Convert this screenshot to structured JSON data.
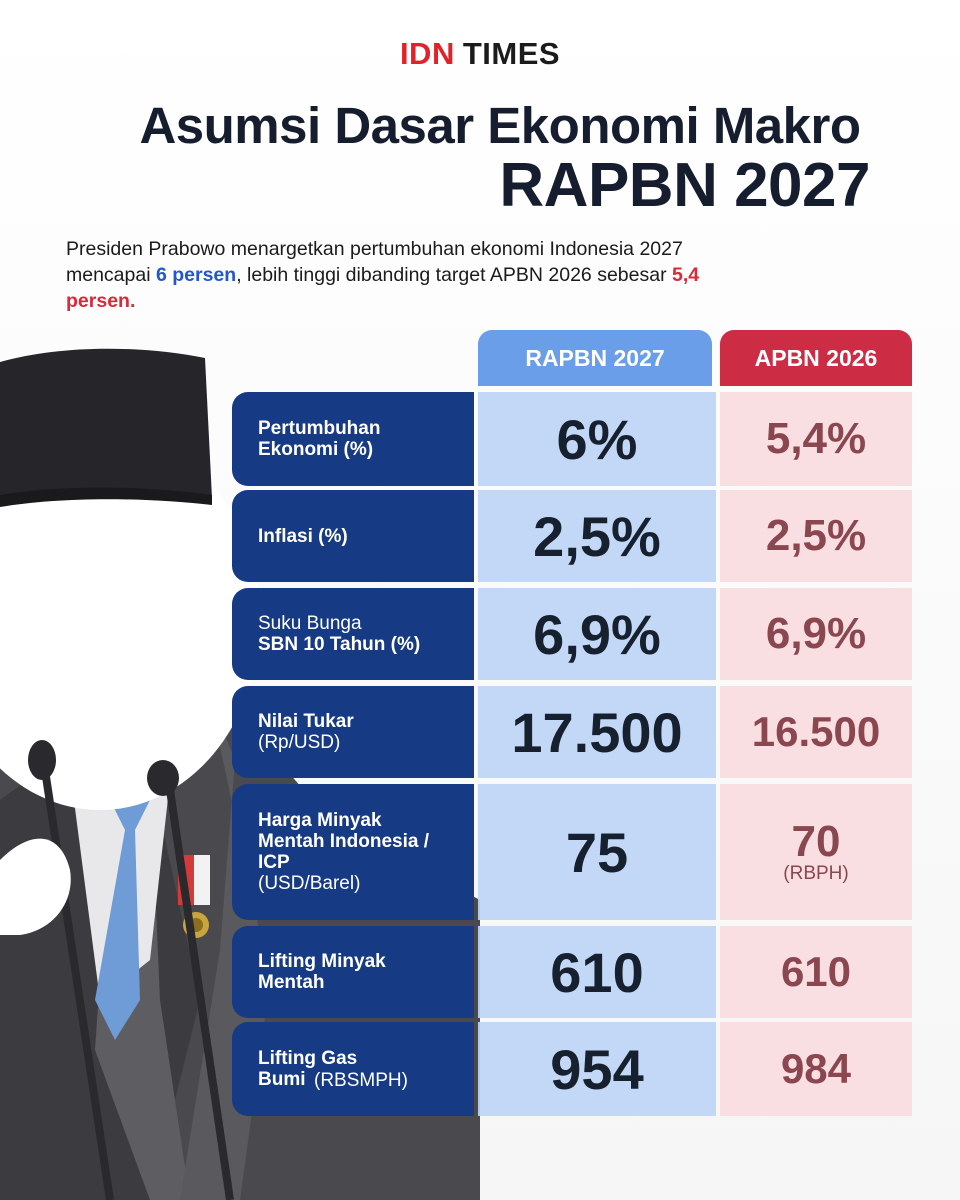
{
  "logo": {
    "idn": "IDN",
    "times": "TIMES"
  },
  "title": {
    "line1": "Asumsi Dasar Ekonomi Makro",
    "line2": "RAPBN 2027"
  },
  "lead": {
    "part1": "Presiden Prabowo menargetkan pertumbuhan ekonomi Indonesia 2027 mencapai ",
    "highlight1": "6 persen",
    "part2": ", lebih tinggi dibanding target APBN 2026 sebesar ",
    "highlight2": "5,4 persen."
  },
  "columns": {
    "rapbn": "RAPBN 2027",
    "apbn": "APBN 2026"
  },
  "rows": [
    {
      "label_bold": "Pertumbuhan Ekonomi (%)",
      "label_thin": "",
      "rapbn": "6%",
      "apbn": "5,4%",
      "apbn_unit": ""
    },
    {
      "label_bold": "Inflasi (%)",
      "label_thin": "",
      "rapbn": "2,5%",
      "apbn": "2,5%",
      "apbn_unit": ""
    },
    {
      "label_thin_top": "Suku Bunga",
      "label_bold": "SBN 10 Tahun (%)",
      "label_thin": "",
      "rapbn": "6,9%",
      "apbn": "6,9%",
      "apbn_unit": ""
    },
    {
      "label_bold": "Nilai Tukar",
      "label_thin": "(Rp/USD)",
      "rapbn": "17.500",
      "apbn": "16.500",
      "apbn_unit": ""
    },
    {
      "label_bold": "Harga Minyak Mentah Indonesia / ICP",
      "label_thin": "(USD/Barel)",
      "rapbn": "75",
      "apbn": "70",
      "apbn_unit": "(RBPH)"
    },
    {
      "label_bold": "Lifting Minyak Mentah",
      "label_thin": "",
      "rapbn": "610",
      "apbn": "610",
      "apbn_unit": ""
    },
    {
      "label_bold": "Lifting Gas Bumi",
      "label_thin": "(RBSMPH)",
      "rapbn": "954",
      "apbn": "984",
      "apbn_unit": ""
    }
  ],
  "colors": {
    "rapbn_header": "#6b9ee8",
    "apbn_header": "#cc2d45",
    "label_bg": "#163b84",
    "highlight_blue": "#2457c9",
    "highlight_red": "#d82a3a"
  }
}
